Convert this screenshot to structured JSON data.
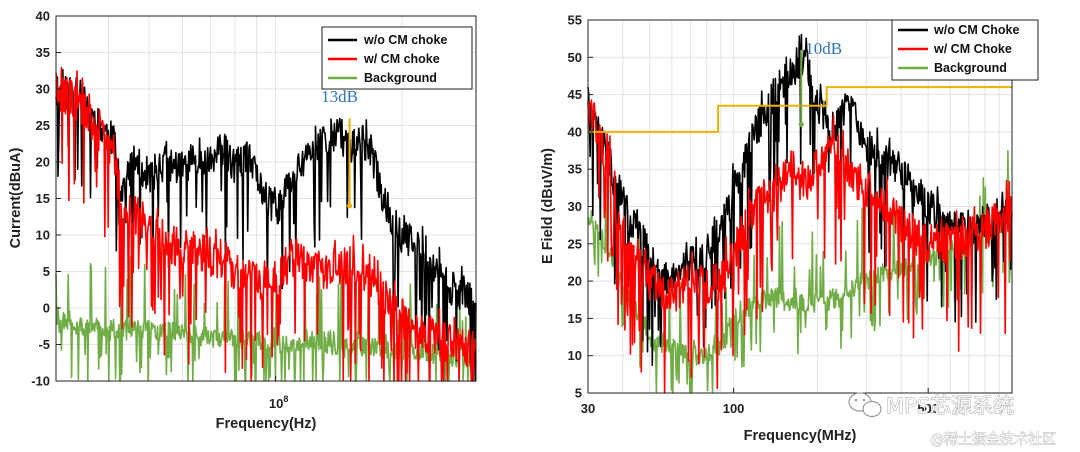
{
  "chart_data": [
    {
      "type": "line",
      "xscale": "log",
      "xlabel": "Frequency(Hz)",
      "ylabel": "Current(dBuA)",
      "xlim": [
        30000000,
        300000000
      ],
      "ylim": [
        -10,
        40
      ],
      "yticks": [
        -10,
        -5,
        0,
        5,
        10,
        15,
        20,
        25,
        30,
        35,
        40
      ],
      "xtick_label": "10",
      "xtick_exp": "8",
      "xtick_value": 100000000,
      "legend": {
        "placement": "top-right",
        "entries": [
          "w/o CM choke",
          "w/ CM choke",
          "Background"
        ]
      },
      "annotation": {
        "text": "13dB",
        "x": 150000000,
        "y_top": 26,
        "y_bottom": 14,
        "color": "#f0b000"
      },
      "series": [
        {
          "name": "w/o CM choke",
          "color": "#000000",
          "x": [
            30000000,
            34000000,
            38000000,
            41000000,
            43000000,
            46000000,
            50000000,
            55000000,
            60000000,
            65000000,
            70000000,
            75000000,
            80000000,
            85000000,
            90000000,
            95000000,
            100000000,
            110000000,
            120000000,
            130000000,
            140000000,
            150000000,
            160000000,
            170000000,
            180000000,
            190000000,
            200000000,
            220000000,
            240000000,
            260000000,
            280000000,
            300000000
          ],
          "y": [
            30,
            29,
            25,
            23,
            16,
            20,
            18,
            20,
            19,
            21,
            20,
            22,
            19,
            21,
            18,
            15,
            13,
            18,
            21,
            23,
            24,
            22,
            23,
            21,
            15,
            12,
            10,
            8,
            5,
            3,
            2,
            0
          ]
        },
        {
          "name": "w/ CM choke",
          "color": "#ff0000",
          "x": [
            30000000,
            34000000,
            38000000,
            41000000,
            43000000,
            46000000,
            50000000,
            55000000,
            60000000,
            65000000,
            70000000,
            75000000,
            80000000,
            85000000,
            90000000,
            95000000,
            100000000,
            110000000,
            120000000,
            130000000,
            140000000,
            150000000,
            160000000,
            170000000,
            180000000,
            190000000,
            200000000,
            220000000,
            240000000,
            260000000,
            280000000,
            300000000
          ],
          "y": [
            30,
            28,
            24,
            22,
            13,
            13,
            11,
            9,
            8,
            8,
            7,
            6,
            5,
            5,
            4,
            4,
            4,
            7,
            6,
            5,
            5,
            6,
            5,
            3,
            2,
            0,
            -2,
            -3,
            -4,
            -5,
            -5,
            -6
          ]
        },
        {
          "name": "Background",
          "color": "#70ad47",
          "x": [
            30000000,
            32000000,
            35000000,
            40000000,
            45000000,
            50000000,
            60000000,
            70000000,
            80000000,
            90000000,
            100000000,
            120000000,
            150000000,
            180000000,
            200000000,
            250000000,
            300000000
          ],
          "y": [
            -2,
            -2,
            -2.5,
            -3,
            -3,
            -3,
            -3.5,
            -4,
            -4,
            -4.5,
            -5,
            -5,
            -5.5,
            -5.5,
            -6,
            -6.5,
            -7
          ]
        }
      ]
    },
    {
      "type": "line",
      "xscale": "log",
      "xlabel": "Frequency(MHz)",
      "ylabel": "E Field (dBuV/m)",
      "xlim": [
        30,
        1000
      ],
      "ylim": [
        5,
        55
      ],
      "yticks": [
        5,
        10,
        15,
        20,
        25,
        30,
        35,
        40,
        45,
        50,
        55
      ],
      "xticks": [
        30,
        100,
        500
      ],
      "legend": {
        "placement": "top-right",
        "entries": [
          "w/o CM Choke",
          "w/ CM Choke",
          "Background"
        ]
      },
      "annotation": {
        "text": "10dB",
        "x": 175,
        "y_top": 51,
        "y_bottom": 41,
        "color": "#70ad47"
      },
      "limit_line": {
        "color": "#f0b000",
        "x": [
          30,
          88,
          88,
          216,
          216,
          1000
        ],
        "y": [
          40,
          40,
          43.5,
          43.5,
          46,
          46
        ]
      },
      "series": [
        {
          "name": "w/o CM Choke",
          "color": "#000000",
          "x": [
            30,
            33,
            36,
            38,
            40,
            42,
            45,
            50,
            55,
            60,
            70,
            80,
            90,
            100,
            120,
            140,
            160,
            180,
            200,
            230,
            260,
            300,
            350,
            400,
            450,
            500,
            600,
            700,
            800,
            900,
            1000
          ],
          "y": [
            44,
            40,
            36,
            31,
            33,
            28,
            27,
            23,
            21,
            20,
            22,
            24,
            27,
            32,
            40,
            45,
            48,
            50,
            44,
            40,
            44,
            38,
            36,
            35,
            32,
            30,
            28,
            27,
            28,
            28,
            30
          ]
        },
        {
          "name": "w/ CM Choke",
          "color": "#ff0000",
          "x": [
            30,
            33,
            36,
            38,
            40,
            42,
            45,
            50,
            55,
            60,
            70,
            80,
            90,
            100,
            120,
            140,
            160,
            180,
            200,
            230,
            260,
            300,
            350,
            400,
            450,
            500,
            600,
            700,
            800,
            900,
            1000
          ],
          "y": [
            44,
            39,
            35,
            30,
            28,
            24,
            22,
            20,
            19,
            18,
            20,
            19,
            20,
            24,
            30,
            32,
            35,
            33,
            36,
            38,
            35,
            32,
            30,
            28,
            26,
            25,
            25,
            26,
            27,
            28,
            30
          ]
        },
        {
          "name": "Background",
          "color": "#70ad47",
          "x": [
            30,
            33,
            36,
            40,
            45,
            50,
            55,
            60,
            70,
            80,
            90,
            100,
            120,
            140,
            160,
            180,
            200,
            250,
            300,
            400,
            500,
            600,
            700,
            800,
            900,
            1000
          ],
          "y": [
            29,
            26,
            24,
            19,
            16,
            12,
            11.5,
            11,
            10,
            10,
            11,
            15,
            17,
            18,
            17,
            17,
            17,
            18,
            20,
            22,
            23,
            24,
            25,
            26,
            27,
            28
          ]
        }
      ]
    }
  ],
  "watermark": {
    "brand": "MPS芯源系统",
    "site": "@稀土掘金技术社区"
  }
}
